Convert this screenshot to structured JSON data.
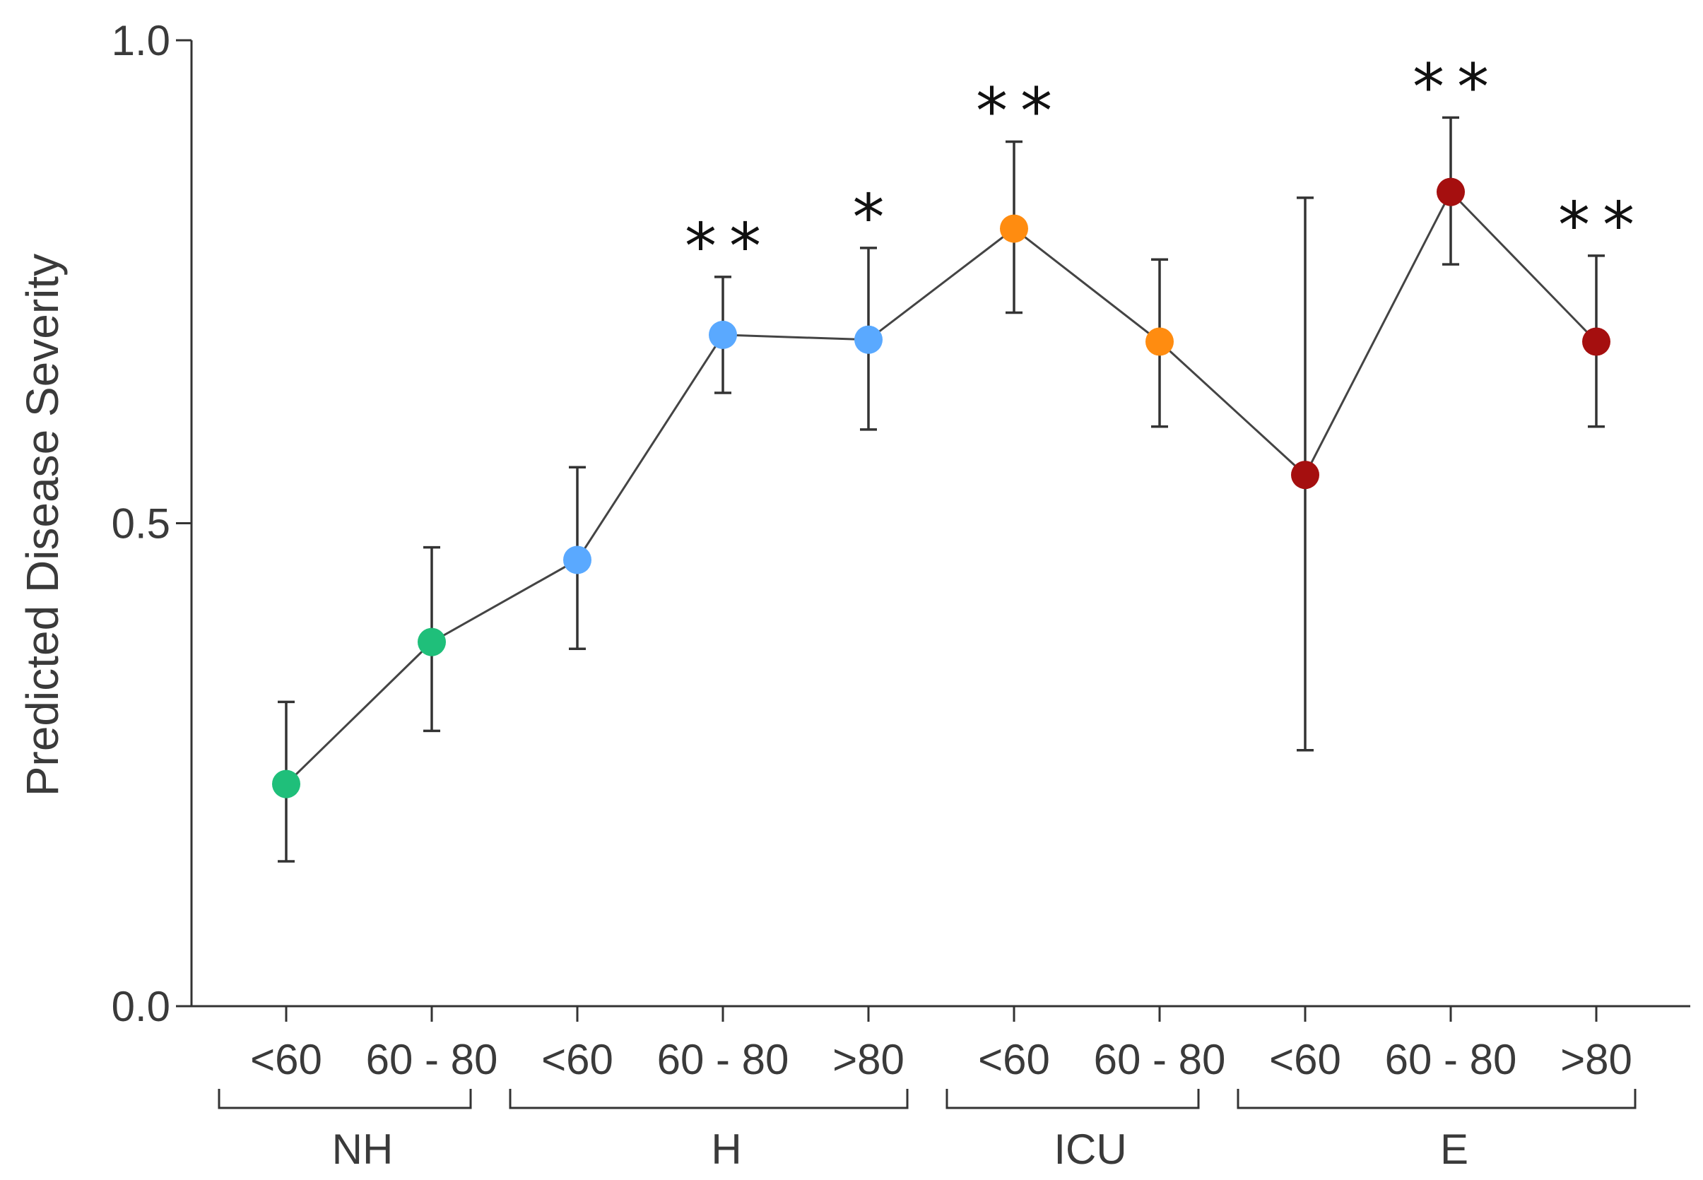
{
  "chart_data": {
    "type": "line",
    "title": "",
    "xlabel": "",
    "ylabel": "Predicted Disease Severity",
    "ylim": [
      0.0,
      1.0
    ],
    "yticks": [
      "0.0",
      "0.5",
      "1.0"
    ],
    "categories": [
      "<60",
      "60 - 80",
      "<60",
      "60 - 80",
      ">80",
      "<60",
      "60 - 80",
      "<60",
      "60 - 80",
      ">80"
    ],
    "groups": [
      {
        "name": "NH",
        "start": 0,
        "end": 1,
        "color": "#1fbf7a"
      },
      {
        "name": "H",
        "start": 2,
        "end": 4,
        "color": "#5aa9ff"
      },
      {
        "name": "ICU",
        "start": 5,
        "end": 6,
        "color": "#ff8c10"
      },
      {
        "name": "E",
        "start": 7,
        "end": 9,
        "color": "#a50f0f"
      }
    ],
    "points": [
      {
        "value": 0.23,
        "err_low": 0.15,
        "err_high": 0.315,
        "sig": ""
      },
      {
        "value": 0.377,
        "err_low": 0.285,
        "err_high": 0.475,
        "sig": ""
      },
      {
        "value": 0.462,
        "err_low": 0.37,
        "err_high": 0.558,
        "sig": ""
      },
      {
        "value": 0.695,
        "err_low": 0.635,
        "err_high": 0.755,
        "sig": "**"
      },
      {
        "value": 0.69,
        "err_low": 0.597,
        "err_high": 0.785,
        "sig": "*"
      },
      {
        "value": 0.805,
        "err_low": 0.718,
        "err_high": 0.895,
        "sig": "**"
      },
      {
        "value": 0.688,
        "err_low": 0.6,
        "err_high": 0.773,
        "sig": ""
      },
      {
        "value": 0.55,
        "err_low": 0.265,
        "err_high": 0.837,
        "sig": ""
      },
      {
        "value": 0.843,
        "err_low": 0.768,
        "err_high": 0.92,
        "sig": "**"
      },
      {
        "value": 0.688,
        "err_low": 0.6,
        "err_high": 0.777,
        "sig": "**"
      }
    ]
  }
}
